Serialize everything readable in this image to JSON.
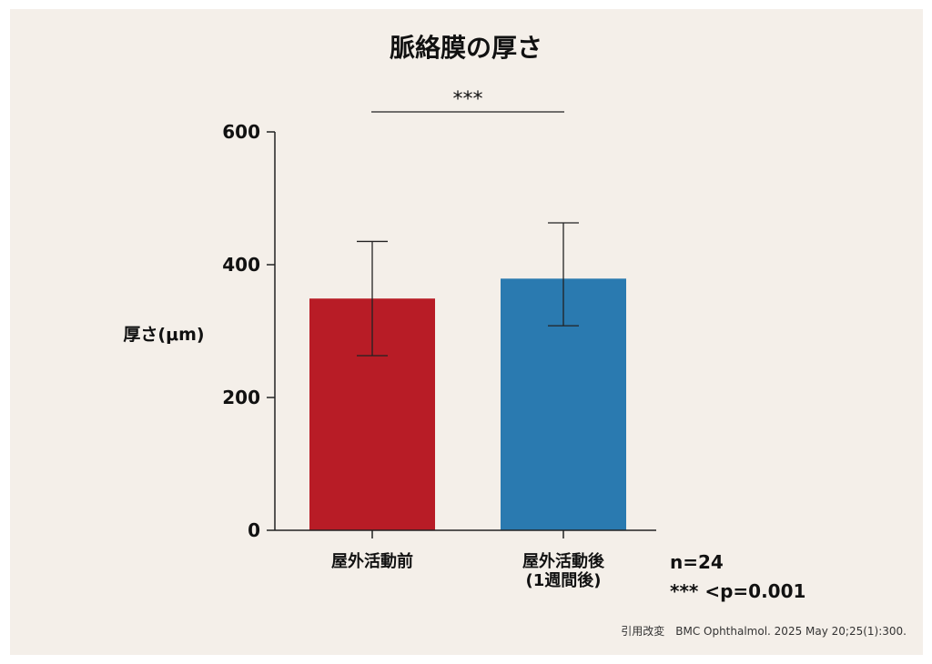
{
  "colors": {
    "background": "#f4efe9",
    "axis": "#222222",
    "series": [
      "#b81c26",
      "#2a7ab0"
    ]
  },
  "chart_data": {
    "type": "bar",
    "title": "脈絡膜の厚さ",
    "ylabel": "厚さ(μm)",
    "xlabel": "",
    "ylim": [
      0,
      600
    ],
    "yticks": [
      0,
      200,
      400,
      600
    ],
    "categories": [
      [
        "屋外活動前"
      ],
      [
        "屋外活動後",
        "(1週間後)"
      ]
    ],
    "values": [
      349,
      379
    ],
    "error": [
      [
        263,
        435
      ],
      [
        308,
        463
      ]
    ],
    "significance": "***",
    "annotations": {
      "n": "n=24",
      "p": "*** <p=0.001"
    }
  },
  "citation": "引用改変　BMC Ophthalmol. 2025 May 20;25(1):300."
}
